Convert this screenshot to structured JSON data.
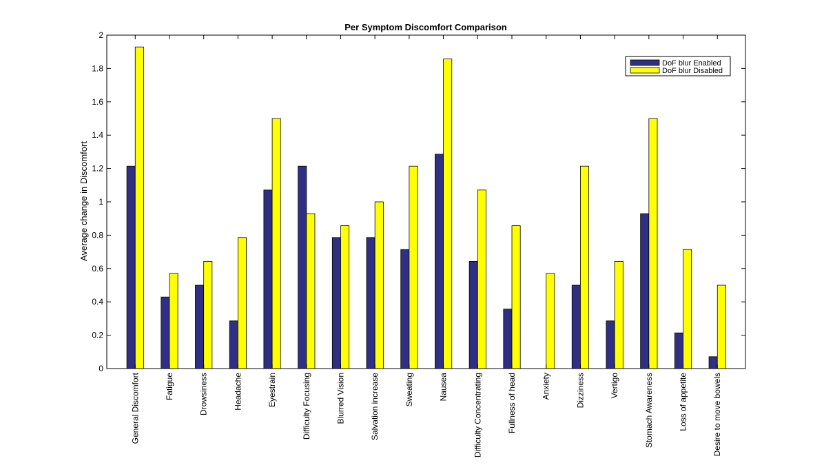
{
  "chart_data": {
    "type": "bar",
    "title": "Per Symptom Discomfort Comparison",
    "xlabel": "",
    "ylabel": "Average change in Discomfort",
    "ylim": [
      0,
      2
    ],
    "yticks": [
      "0",
      "0.2",
      "0.4",
      "0.6",
      "0.8",
      "1",
      "1.2",
      "1.4",
      "1.6",
      "1.8",
      "2"
    ],
    "grid": false,
    "legend_position": "top-right",
    "categories": [
      "General Discomfort",
      "Fatigue",
      "Drowsiness",
      "Headache",
      "Eyestrain",
      "Difficulty Focusing",
      "Blurred Vision",
      "Salvation increase",
      "Sweating",
      "Nausea",
      "Difficulty Concentrating",
      "Fullness of head",
      "Anxiety",
      "Dizziness",
      "Vertigo",
      "Stomach Awareness",
      "Loss of appetite",
      "Desire to move bowels"
    ],
    "series": [
      {
        "name": "DoF blur Enabled",
        "color": "#2f2f83",
        "values": [
          1.214,
          0.429,
          0.5,
          0.286,
          1.071,
          1.214,
          0.786,
          0.786,
          0.714,
          1.286,
          0.643,
          0.357,
          0.0,
          0.5,
          0.286,
          0.929,
          0.214,
          0.071
        ]
      },
      {
        "name": "DoF blur Disabled",
        "color": "#ffff00",
        "values": [
          1.929,
          0.571,
          0.643,
          0.786,
          1.5,
          0.929,
          0.857,
          1.0,
          1.214,
          1.857,
          1.071,
          0.857,
          0.571,
          1.214,
          0.643,
          1.5,
          0.714,
          0.5
        ]
      }
    ]
  }
}
